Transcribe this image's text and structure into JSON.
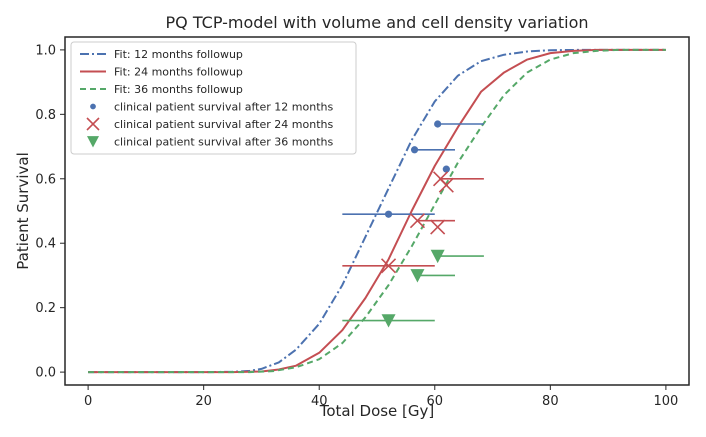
{
  "chart_data": {
    "type": "line",
    "title": "PQ TCP-model with volume and cell density variation",
    "xlabel": "Total Dose [Gy]",
    "ylabel": "Patient Survival",
    "xlim": [
      -4,
      104
    ],
    "ylim": [
      -0.04,
      1.04
    ],
    "xticks": [
      0,
      20,
      40,
      60,
      80,
      100
    ],
    "yticks": [
      0.0,
      0.2,
      0.4,
      0.6,
      0.8,
      1.0
    ],
    "xtick_labels": [
      "0",
      "20",
      "40",
      "60",
      "80",
      "100"
    ],
    "ytick_labels": [
      "0.0",
      "0.2",
      "0.4",
      "0.6",
      "0.8",
      "1.0"
    ],
    "grid": false,
    "legend_position": "top-left",
    "colors": {
      "blue": "#4c72b0",
      "red": "#c44e52",
      "green": "#55a868",
      "axis": "#262626"
    },
    "series": [
      {
        "name": "Fit: 12 months followup",
        "kind": "fit",
        "style": "dashdot",
        "color": "#4c72b0",
        "x": [
          0,
          20,
          25,
          28,
          30,
          33,
          36,
          40,
          44,
          48,
          52,
          56,
          60,
          64,
          68,
          72,
          76,
          80,
          85,
          90,
          100
        ],
        "y": [
          0,
          0,
          0.001,
          0.004,
          0.01,
          0.03,
          0.07,
          0.15,
          0.27,
          0.42,
          0.57,
          0.72,
          0.84,
          0.92,
          0.965,
          0.985,
          0.995,
          0.999,
          1.0,
          1.0,
          1.0
        ]
      },
      {
        "name": "Fit: 24 months followup",
        "kind": "fit",
        "style": "solid",
        "color": "#c44e52",
        "x": [
          0,
          25,
          30,
          33,
          36,
          40,
          44,
          48,
          52,
          56,
          60,
          64,
          68,
          72,
          76,
          80,
          84,
          88,
          92,
          100
        ],
        "y": [
          0,
          0,
          0.002,
          0.008,
          0.02,
          0.06,
          0.13,
          0.23,
          0.35,
          0.5,
          0.64,
          0.76,
          0.87,
          0.93,
          0.97,
          0.99,
          0.997,
          1.0,
          1.0,
          1.0
        ]
      },
      {
        "name": "Fit: 36 months followup",
        "kind": "fit",
        "style": "dashed",
        "color": "#55a868",
        "x": [
          0,
          28,
          32,
          36,
          40,
          44,
          48,
          52,
          56,
          60,
          64,
          68,
          72,
          76,
          80,
          84,
          88,
          92,
          100
        ],
        "y": [
          0,
          0,
          0.003,
          0.015,
          0.04,
          0.09,
          0.17,
          0.27,
          0.39,
          0.52,
          0.65,
          0.76,
          0.86,
          0.93,
          0.97,
          0.99,
          0.997,
          1.0,
          1.0
        ]
      },
      {
        "name": "clinical patient survival after 12 months",
        "kind": "points",
        "marker": "circle",
        "color": "#4c72b0",
        "points": [
          {
            "x": 60.5,
            "y": 0.77,
            "xmin": 60.5,
            "xmax": 68.5
          },
          {
            "x": 56.5,
            "y": 0.69,
            "xmin": 56.5,
            "xmax": 63.5
          },
          {
            "x": 62.0,
            "y": 0.63,
            "xmin": 62.0,
            "xmax": 62.0
          },
          {
            "x": 52.0,
            "y": 0.49,
            "xmin": 44.0,
            "xmax": 60.0
          }
        ]
      },
      {
        "name": "clinical patient survival after 24 months",
        "kind": "points",
        "marker": "x",
        "color": "#c44e52",
        "points": [
          {
            "x": 61.0,
            "y": 0.6,
            "xmin": 61.0,
            "xmax": 68.5
          },
          {
            "x": 62.0,
            "y": 0.58,
            "xmin": 62.0,
            "xmax": 62.0
          },
          {
            "x": 57.0,
            "y": 0.47,
            "xmin": 57.0,
            "xmax": 63.5
          },
          {
            "x": 60.5,
            "y": 0.45,
            "xmin": 60.5,
            "xmax": 60.5
          },
          {
            "x": 52.0,
            "y": 0.33,
            "xmin": 44.0,
            "xmax": 60.0
          }
        ]
      },
      {
        "name": "clinical patient survival after 36 months",
        "kind": "points",
        "marker": "triangle-down",
        "color": "#55a868",
        "points": [
          {
            "x": 60.5,
            "y": 0.36,
            "xmin": 60.5,
            "xmax": 68.5
          },
          {
            "x": 57.0,
            "y": 0.3,
            "xmin": 57.0,
            "xmax": 63.5
          },
          {
            "x": 52.0,
            "y": 0.16,
            "xmin": 44.0,
            "xmax": 60.0
          }
        ]
      }
    ]
  }
}
